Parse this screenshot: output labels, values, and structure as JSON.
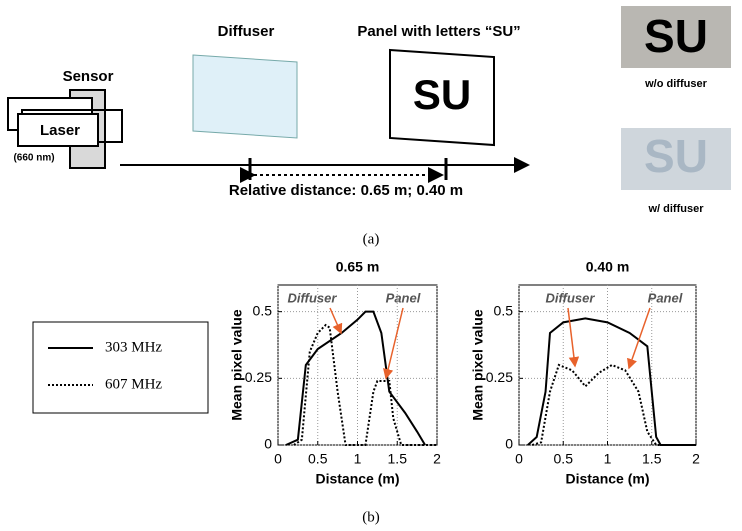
{
  "diagram": {
    "sensor": "Sensor",
    "laser": "Laser",
    "wavelength": "(660 nm)",
    "diffuser": "Diffuser",
    "panel": "Panel with letters “SU”",
    "panel_letters": "SU",
    "distance": "Relative distance: 0.65 m; 0.40 m",
    "photo_without": {
      "letters": "SU",
      "caption": "w/o diffuser"
    },
    "photo_with": {
      "letters": "SU",
      "caption": "w/ diffuser"
    },
    "caption": "(a)"
  },
  "caption_b": "(b)",
  "chart_data": [
    {
      "type": "line",
      "title": "0.65 m",
      "xlabel": "Distance (m)",
      "ylabel": "Mean pixel value",
      "xlim": [
        0,
        2
      ],
      "ylim": [
        0,
        0.6
      ],
      "xticks": [
        0,
        0.5,
        1,
        1.5,
        2
      ],
      "yticks": [
        0,
        0.25,
        0.5
      ],
      "grid": true,
      "series": [
        {
          "name": "303 MHz",
          "color": "#000000",
          "line_style": "solid",
          "x": [
            0.1,
            0.25,
            0.35,
            0.5,
            0.8,
            1.0,
            1.1,
            1.2,
            1.3,
            1.4,
            1.6,
            1.75,
            1.85
          ],
          "values": [
            0,
            0.02,
            0.3,
            0.36,
            0.42,
            0.47,
            0.5,
            0.5,
            0.42,
            0.2,
            0.12,
            0.05,
            0
          ]
        },
        {
          "name": "607 MHz",
          "color": "#000000",
          "line_style": "dotted",
          "x": [
            0.2,
            0.3,
            0.4,
            0.5,
            0.6,
            0.65,
            0.75,
            0.85,
            1.1,
            1.2,
            1.25,
            1.4,
            1.45,
            1.55,
            2
          ],
          "values": [
            0,
            0.02,
            0.35,
            0.42,
            0.45,
            0.44,
            0.2,
            0,
            0,
            0.2,
            0.24,
            0.24,
            0.1,
            0,
            0
          ]
        }
      ],
      "annotations": [
        {
          "text": "Diffuser",
          "arrow_color": "#e8622c"
        },
        {
          "text": "Panel",
          "arrow_color": "#e8622c"
        }
      ]
    },
    {
      "type": "line",
      "title": "0.40 m",
      "xlabel": "Distance (m)",
      "ylabel": "Mean pixel value",
      "xlim": [
        0,
        2
      ],
      "ylim": [
        0,
        0.6
      ],
      "xticks": [
        0,
        0.5,
        1,
        1.5,
        2
      ],
      "yticks": [
        0,
        0.25,
        0.5
      ],
      "grid": true,
      "series": [
        {
          "color": "#000000",
          "line_style": "solid",
          "x": [
            0.1,
            0.2,
            0.3,
            0.35,
            0.5,
            0.75,
            1.0,
            1.25,
            1.45,
            1.5,
            1.55,
            1.6,
            2
          ],
          "values": [
            0,
            0.03,
            0.2,
            0.42,
            0.46,
            0.475,
            0.46,
            0.42,
            0.37,
            0.2,
            0.03,
            0,
            0
          ]
        },
        {
          "color": "#000000",
          "line_style": "dotted",
          "x": [
            0.15,
            0.25,
            0.35,
            0.45,
            0.6,
            0.75,
            0.9,
            1.05,
            1.2,
            1.35,
            1.45,
            1.55,
            2
          ],
          "values": [
            0,
            0.01,
            0.2,
            0.3,
            0.28,
            0.22,
            0.27,
            0.3,
            0.28,
            0.2,
            0.05,
            0,
            0
          ]
        }
      ],
      "annotations": [
        {
          "text": "Diffuser",
          "arrow_color": "#e8622c"
        },
        {
          "text": "Panel",
          "arrow_color": "#e8622c"
        }
      ]
    }
  ]
}
